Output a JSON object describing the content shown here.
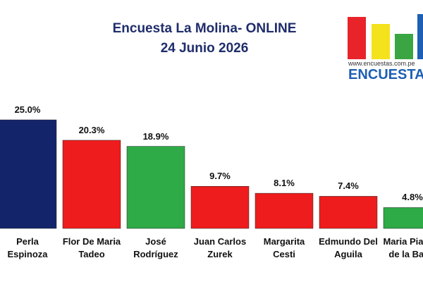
{
  "chart_data": {
    "type": "bar",
    "title": "Encuesta La Molina- ONLINE",
    "subtitle": "24 Junio 2026",
    "logo_url": "www.encuestas.com.pe",
    "logo_text": "ENCUESTAS",
    "categories": [
      "Perla Espinoza",
      "Flor De Maria Tadeo",
      "José Rodríguez",
      "Juan Carlos Zurek",
      "Margarita Cesti",
      "Edmundo Del Aguila",
      "Maria Pia Paz de la Barra"
    ],
    "values": [
      25.0,
      20.3,
      18.9,
      9.7,
      8.1,
      7.4,
      4.8
    ],
    "value_labels": [
      "25.0%",
      "20.3%",
      "18.9%",
      "9.7%",
      "8.1%",
      "7.4%",
      "4.8%"
    ],
    "colors": [
      "#14246b",
      "#ee1c1c",
      "#2eaa47",
      "#ee1c1c",
      "#ee1c1c",
      "#ee1c1c",
      "#2eaa47"
    ],
    "ylim": [
      0,
      25.0
    ]
  }
}
